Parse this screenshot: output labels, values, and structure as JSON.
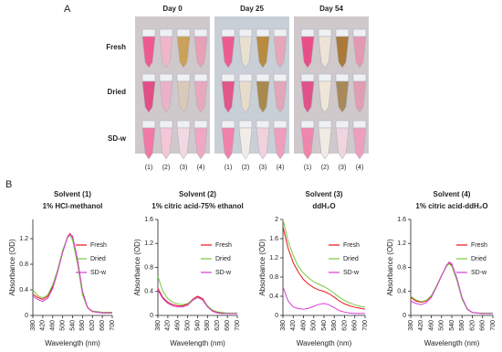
{
  "figure": {
    "panel_a": "A",
    "panel_b": "B",
    "days": [
      "Day 0",
      "Day 25",
      "Day 54"
    ],
    "rows": [
      "Fresh",
      "Dried",
      "SD-w"
    ],
    "tube_labels": [
      "(1)",
      "(2)",
      "(3)",
      "(4)"
    ]
  },
  "chart_data": [
    {
      "type": "line",
      "title": "Solvent (1)",
      "subtitle": "1% HCl-methanol",
      "x_label": "Wavelength (nm)",
      "y_label": "Absorbance (OD)",
      "x": [
        380,
        400,
        420,
        440,
        460,
        480,
        500,
        520,
        530,
        540,
        560,
        580,
        600,
        620,
        640,
        660,
        680,
        700
      ],
      "series": [
        {
          "name": "Fresh",
          "color": "#e8141c",
          "values": [
            0.33,
            0.28,
            0.25,
            0.3,
            0.45,
            0.7,
            1.0,
            1.23,
            1.28,
            1.22,
            0.85,
            0.35,
            0.12,
            0.06,
            0.05,
            0.04,
            0.04,
            0.04
          ]
        },
        {
          "name": "Dried",
          "color": "#7ac943",
          "values": [
            0.4,
            0.31,
            0.27,
            0.32,
            0.48,
            0.72,
            1.02,
            1.22,
            1.25,
            1.18,
            0.8,
            0.32,
            0.12,
            0.07,
            0.06,
            0.05,
            0.05,
            0.05
          ]
        },
        {
          "name": "SD-w",
          "color": "#d63cd6",
          "values": [
            0.3,
            0.25,
            0.22,
            0.27,
            0.42,
            0.68,
            0.98,
            1.22,
            1.27,
            1.24,
            0.88,
            0.38,
            0.13,
            0.06,
            0.05,
            0.04,
            0.04,
            0.04
          ]
        }
      ],
      "xlim": [
        380,
        700
      ],
      "xticks": [
        380,
        420,
        460,
        500,
        540,
        580,
        620,
        660,
        700
      ],
      "ylim": [
        0,
        1.5
      ],
      "yticks": [
        0,
        0.4,
        0.8,
        1.2
      ]
    },
    {
      "type": "line",
      "title": "Solvent (2)",
      "subtitle": "1% citric acid-75% ethanol",
      "x_label": "Wavelength (nm)",
      "y_label": "Absorbance (OD)",
      "x": [
        380,
        400,
        420,
        440,
        460,
        480,
        500,
        520,
        540,
        560,
        580,
        600,
        620,
        640,
        660,
        680,
        700
      ],
      "series": [
        {
          "name": "Fresh",
          "color": "#e8141c",
          "values": [
            0.45,
            0.3,
            0.22,
            0.18,
            0.16,
            0.16,
            0.19,
            0.27,
            0.32,
            0.28,
            0.16,
            0.08,
            0.05,
            0.04,
            0.03,
            0.03,
            0.03
          ]
        },
        {
          "name": "Dried",
          "color": "#7ac943",
          "values": [
            0.65,
            0.4,
            0.28,
            0.22,
            0.19,
            0.18,
            0.2,
            0.26,
            0.3,
            0.26,
            0.16,
            0.09,
            0.06,
            0.05,
            0.04,
            0.04,
            0.04
          ]
        },
        {
          "name": "SD-w",
          "color": "#d63cd6",
          "values": [
            0.42,
            0.28,
            0.2,
            0.16,
            0.14,
            0.14,
            0.17,
            0.25,
            0.3,
            0.26,
            0.14,
            0.07,
            0.04,
            0.03,
            0.03,
            0.03,
            0.03
          ]
        }
      ],
      "xlim": [
        380,
        700
      ],
      "xticks": [
        380,
        420,
        460,
        500,
        540,
        580,
        620,
        660,
        700
      ],
      "ylim": [
        0,
        1.6
      ],
      "yticks": [
        0,
        0.4,
        0.8,
        1.2,
        1.6
      ]
    },
    {
      "type": "line",
      "title": "Solvent (3)",
      "subtitle": "ddH₂O",
      "x_label": "Wavelength (nm)",
      "y_label": "Absorbance (OD)",
      "x": [
        380,
        400,
        420,
        440,
        460,
        480,
        500,
        520,
        540,
        560,
        580,
        600,
        620,
        640,
        660,
        680,
        700
      ],
      "series": [
        {
          "name": "Fresh",
          "color": "#e8141c",
          "values": [
            1.85,
            1.4,
            1.1,
            0.9,
            0.75,
            0.65,
            0.58,
            0.53,
            0.5,
            0.45,
            0.38,
            0.3,
            0.24,
            0.2,
            0.17,
            0.15,
            0.13
          ]
        },
        {
          "name": "Dried",
          "color": "#7ac943",
          "values": [
            2.0,
            1.55,
            1.25,
            1.02,
            0.88,
            0.78,
            0.7,
            0.65,
            0.6,
            0.54,
            0.46,
            0.38,
            0.31,
            0.26,
            0.22,
            0.19,
            0.17
          ]
        },
        {
          "name": "SD-w",
          "color": "#d63cd6",
          "values": [
            0.6,
            0.3,
            0.18,
            0.14,
            0.13,
            0.15,
            0.19,
            0.23,
            0.25,
            0.22,
            0.16,
            0.1,
            0.07,
            0.05,
            0.04,
            0.04,
            0.04
          ]
        }
      ],
      "xlim": [
        380,
        700
      ],
      "xticks": [
        380,
        420,
        460,
        500,
        540,
        580,
        620,
        660,
        700
      ],
      "ylim": [
        0,
        2.0
      ],
      "yticks": [
        0,
        0.4,
        0.8,
        1.2,
        1.6,
        2.0
      ]
    },
    {
      "type": "line",
      "title": "Solvent (4)",
      "subtitle": "1% citric acid-ddH₂O",
      "x_label": "Wavelength (nm)",
      "y_label": "Absorbance (OD)",
      "x": [
        380,
        400,
        420,
        440,
        460,
        480,
        500,
        520,
        530,
        540,
        560,
        580,
        600,
        620,
        640,
        660,
        680,
        700
      ],
      "series": [
        {
          "name": "Fresh",
          "color": "#e8141c",
          "values": [
            0.3,
            0.24,
            0.22,
            0.24,
            0.32,
            0.48,
            0.66,
            0.83,
            0.87,
            0.84,
            0.6,
            0.28,
            0.1,
            0.05,
            0.04,
            0.03,
            0.03,
            0.03
          ]
        },
        {
          "name": "Dried",
          "color": "#7ac943",
          "values": [
            0.32,
            0.26,
            0.23,
            0.25,
            0.33,
            0.49,
            0.67,
            0.82,
            0.86,
            0.82,
            0.58,
            0.27,
            0.1,
            0.05,
            0.04,
            0.04,
            0.04,
            0.04
          ]
        },
        {
          "name": "SD-w",
          "color": "#d63cd6",
          "values": [
            0.24,
            0.2,
            0.18,
            0.21,
            0.3,
            0.47,
            0.66,
            0.84,
            0.89,
            0.86,
            0.62,
            0.3,
            0.11,
            0.05,
            0.04,
            0.03,
            0.03,
            0.03
          ]
        }
      ],
      "xlim": [
        380,
        700
      ],
      "xticks": [
        380,
        420,
        460,
        500,
        540,
        580,
        620,
        660,
        700
      ],
      "ylim": [
        0,
        1.6
      ],
      "yticks": [
        0,
        0.4,
        0.8,
        1.2,
        1.6
      ]
    }
  ]
}
